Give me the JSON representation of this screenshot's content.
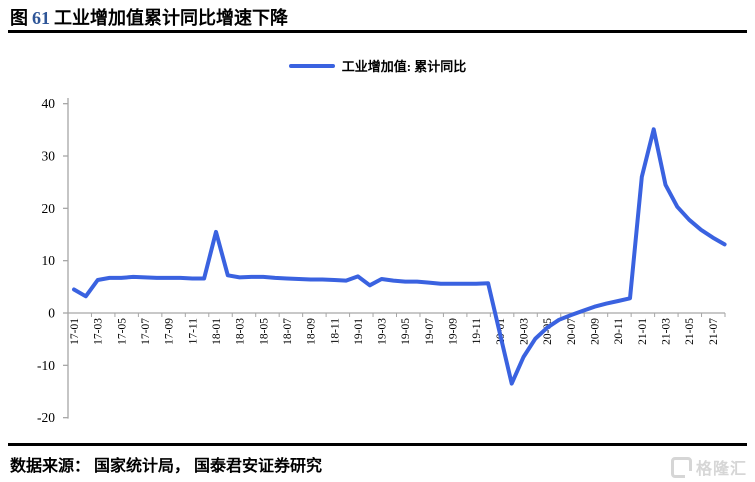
{
  "header": {
    "figure_word": "图",
    "figure_number": "61",
    "title_text": "工业增加值累计同比增速下降"
  },
  "legend": {
    "label": "工业增加值: 累计同比"
  },
  "footer": {
    "source": "数据来源： 国家统计局， 国泰君安证券研究",
    "watermark": "格隆汇"
  },
  "colors": {
    "line": "#3a62e0",
    "figure_number": "#2e5597",
    "axis": "#a6a6a6",
    "tick_label": "#000000",
    "watermark": "#d6d6d6"
  },
  "chart_data": {
    "type": "line",
    "title": "工业增加值累计同比增速下降",
    "legend_entries": [
      "工业增加值: 累计同比"
    ],
    "legend_position": "top-center",
    "grid": false,
    "ylim": [
      -20,
      40
    ],
    "yticks": [
      40,
      30,
      20,
      10,
      0,
      -10,
      -20
    ],
    "xtick_labels": [
      "17-01",
      "17-03",
      "17-05",
      "17-07",
      "17-09",
      "17-11",
      "18-01",
      "18-03",
      "18-05",
      "18-07",
      "18-09",
      "18-11",
      "19-01",
      "19-03",
      "19-05",
      "19-07",
      "19-09",
      "19-11",
      "20-01",
      "20-03",
      "20-05",
      "20-07",
      "20-09",
      "20-11",
      "21-01",
      "21-03",
      "21-05",
      "21-07"
    ],
    "x": [
      "17-01",
      "17-02",
      "17-03",
      "17-04",
      "17-05",
      "17-06",
      "17-07",
      "17-08",
      "17-09",
      "17-10",
      "17-11",
      "17-12",
      "18-01",
      "18-02",
      "18-03",
      "18-04",
      "18-05",
      "18-06",
      "18-07",
      "18-08",
      "18-09",
      "18-10",
      "18-11",
      "18-12",
      "19-01",
      "19-02",
      "19-03",
      "19-04",
      "19-05",
      "19-06",
      "19-07",
      "19-08",
      "19-09",
      "19-10",
      "19-11",
      "19-12",
      "20-01",
      "20-02",
      "20-03",
      "20-04",
      "20-05",
      "20-06",
      "20-07",
      "20-08",
      "20-09",
      "20-10",
      "20-11",
      "20-12",
      "21-01",
      "21-02",
      "21-03",
      "21-04",
      "21-05",
      "21-06",
      "21-07",
      "21-08"
    ],
    "series": [
      {
        "name": "工业增加值: 累计同比",
        "values": [
          4.5,
          3.2,
          6.3,
          6.7,
          6.7,
          6.9,
          6.8,
          6.7,
          6.7,
          6.7,
          6.6,
          6.6,
          15.5,
          7.2,
          6.8,
          6.9,
          6.9,
          6.7,
          6.6,
          6.5,
          6.4,
          6.4,
          6.3,
          6.2,
          7.0,
          5.3,
          6.5,
          6.2,
          6.0,
          6.0,
          5.8,
          5.6,
          5.6,
          5.6,
          5.6,
          5.7,
          -3.9,
          -13.5,
          -8.4,
          -4.9,
          -2.8,
          -1.3,
          -0.4,
          0.4,
          1.2,
          1.8,
          2.3,
          2.8,
          26.0,
          35.1,
          24.5,
          20.3,
          17.8,
          15.9,
          14.4,
          13.1
        ]
      }
    ]
  }
}
